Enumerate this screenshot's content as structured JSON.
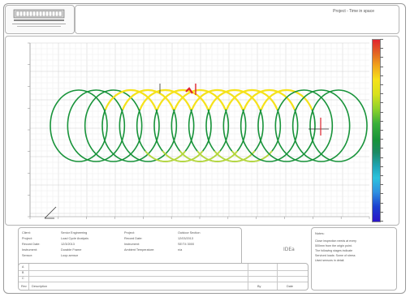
{
  "header": {
    "title_text": "Project - Time in space"
  },
  "info": {
    "rows": [
      {
        "label": "Client:",
        "value": "Senior Engineering",
        "label2": "Project:",
        "value2": "Outdoor Section"
      },
      {
        "label": "Project:",
        "value": "Load Cycle Analysis",
        "label2": "Record Date:",
        "value2": "12/03/2013"
      },
      {
        "label": "Record Date:",
        "value": "12/3/2013",
        "label2": "Instrument:",
        "value2": "SE/T4 3000"
      },
      {
        "label": "Instrument:",
        "value": "Durable Frame",
        "label2": "Ambient Temperature:",
        "value2": "n/a"
      },
      {
        "label": "Sensor:",
        "value": "Loop-sensor",
        "label2": "",
        "value2": ""
      }
    ]
  },
  "company": {
    "name": "IDEa"
  },
  "notes": {
    "title": "Notes:",
    "lines": [
      "Close inspection needs at every",
      "500mm from the origin point.",
      "The following stages indicate",
      "Serviced loads: Some of stress",
      "Used sensors in detail."
    ]
  },
  "revisions": {
    "col_rev": "Rev",
    "col_desc": "Description",
    "col_by": "By",
    "col_date": "Date",
    "rows": [
      "A",
      "B",
      "C"
    ]
  },
  "chart_data": {
    "type": "line",
    "description_of_series": "Series of overlapping loop traces colored by magnitude",
    "loops": 16,
    "colors": {
      "low": "#1b3fd0",
      "mid_low": "#20a6b8",
      "mid": "#18933a",
      "mid_high": "#f6e21a",
      "high": "#e0242e"
    },
    "grid": true
  }
}
